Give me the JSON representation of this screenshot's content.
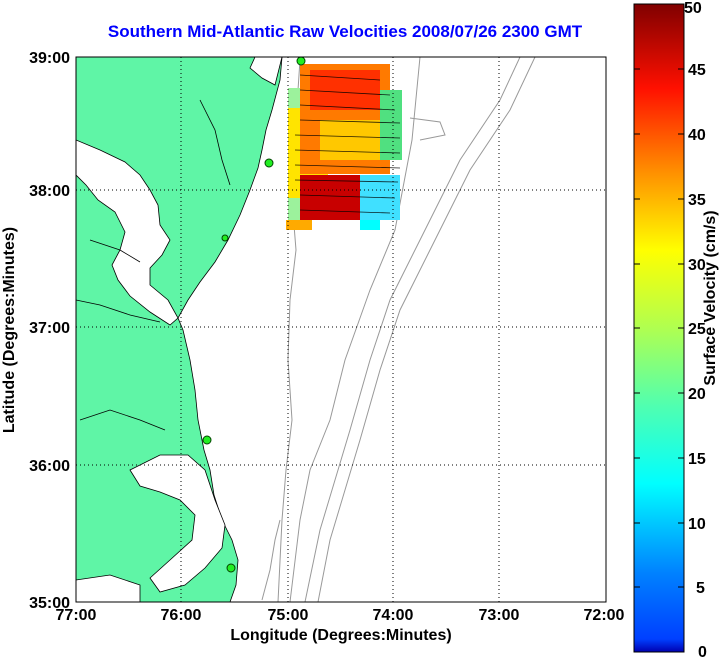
{
  "title": "Southern Mid-Atlantic Raw Velocities 2008/07/26 2300 GMT",
  "xaxis": {
    "label": "Longitude (Degrees:Minutes)",
    "ticks": [
      "77:00",
      "76:00",
      "75:00",
      "74:00",
      "73:00",
      "72:00"
    ]
  },
  "yaxis": {
    "label": "Latitude (Degrees:Minutes)",
    "ticks": [
      "39:00",
      "38:00",
      "37:00",
      "36:00",
      "35:00"
    ]
  },
  "colorbar": {
    "label": "Surface Velocity (cm/s)",
    "ticks": [
      "50",
      "45",
      "40",
      "35",
      "30",
      "25",
      "20",
      "15",
      "10",
      "5",
      "0"
    ],
    "min": 0,
    "max": 50
  },
  "chart_data": {
    "type": "map",
    "xlim_deg_west": [
      77,
      72
    ],
    "ylim_deg_north": [
      35,
      39
    ],
    "grid": "dotted",
    "colorscale": "jet",
    "velocity_range_cm_s": [
      0,
      50
    ],
    "stations": [
      {
        "lon_w": 74.95,
        "lat_n": 38.99
      },
      {
        "lon_w": 75.15,
        "lat_n": 38.22
      },
      {
        "lon_w": 75.52,
        "lat_n": 37.65
      },
      {
        "lon_w": 75.75,
        "lat_n": 36.2
      },
      {
        "lon_w": 75.52,
        "lat_n": 35.25
      }
    ]
  },
  "colors": {
    "land": "#5ff5a6",
    "title": "#0000ff",
    "bathymetry": "#999999"
  }
}
